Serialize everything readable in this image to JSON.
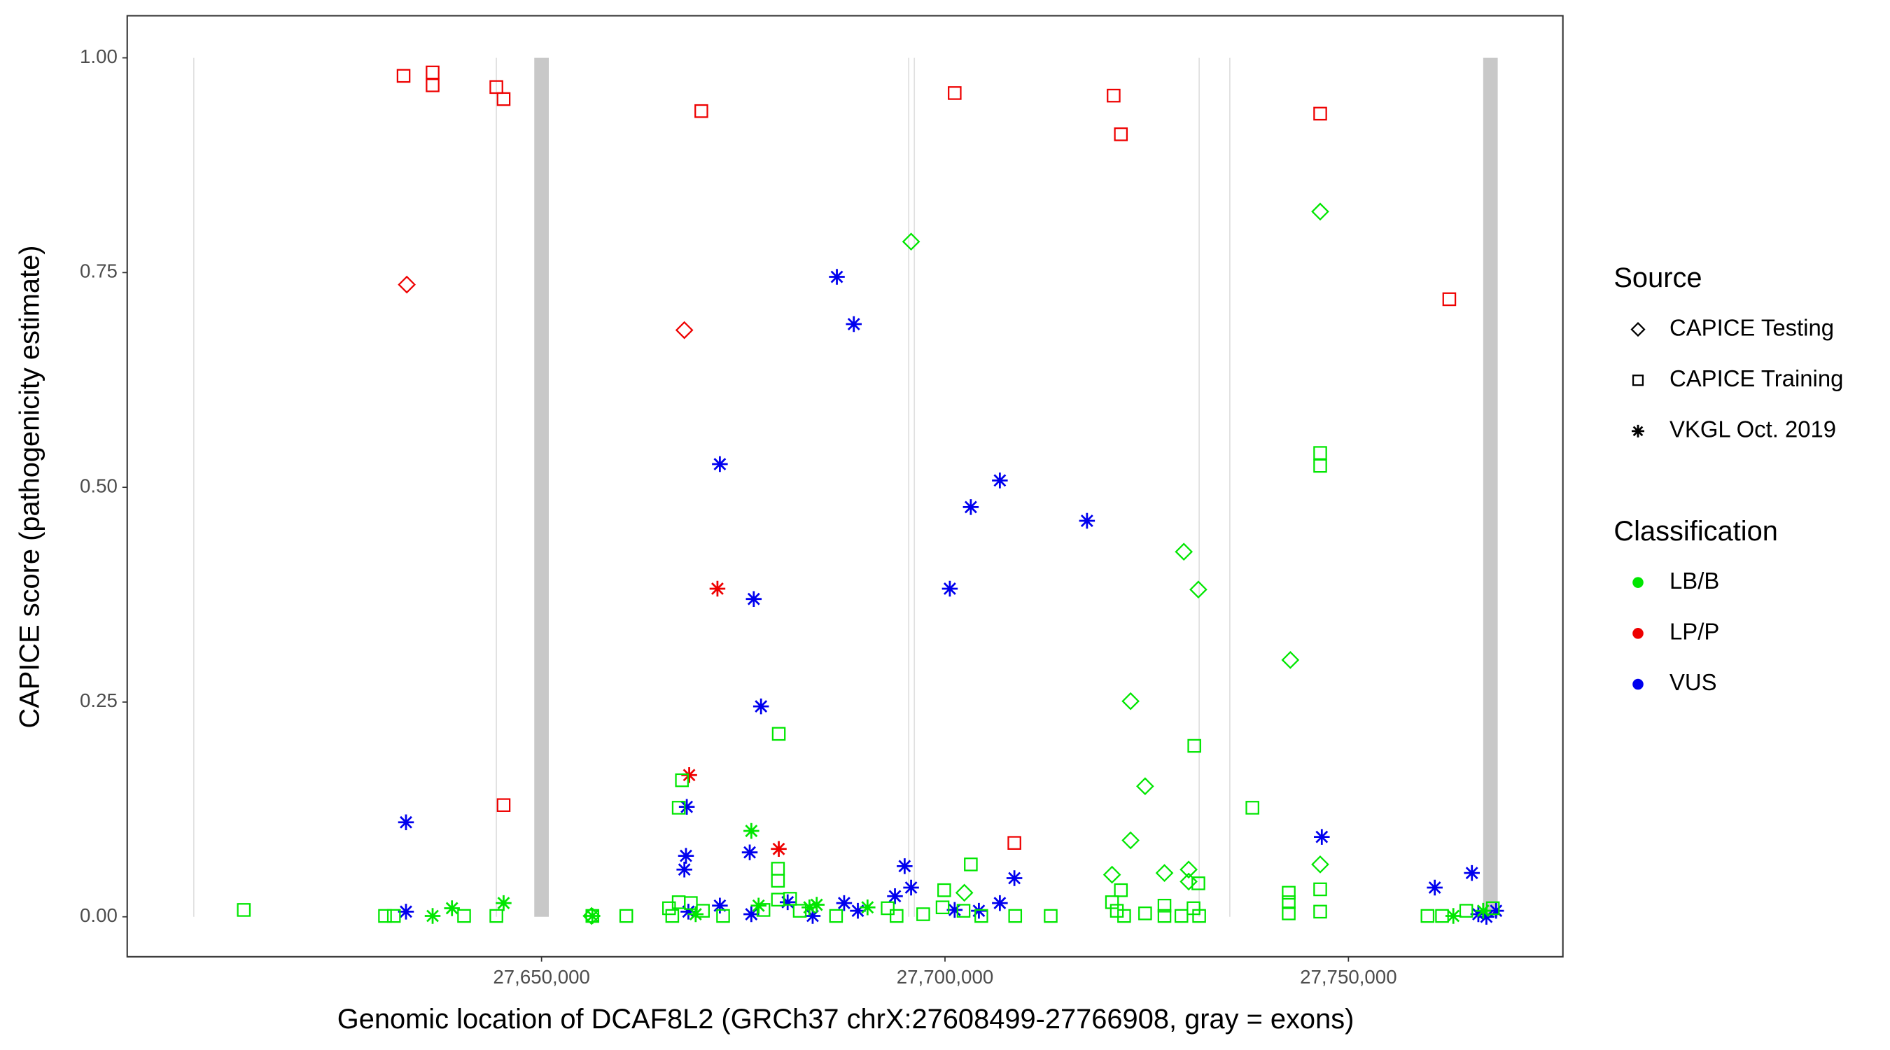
{
  "chart_data": {
    "type": "scatter",
    "xlabel": "Genomic location of DCAF8L2 (GRCh37 chrX:27608499-27766908, gray = exons)",
    "ylabel": "CAPICE score (pathogenicity estimate)",
    "xlim": [
      27598650,
      27776577
    ],
    "ylim": [
      -0.0465,
      1.049
    ],
    "xticks": [
      {
        "value": 27650000,
        "label": "27,650,000"
      },
      {
        "value": 27700000,
        "label": "27,700,000"
      },
      {
        "value": 27750000,
        "label": "27,750,000"
      }
    ],
    "yticks": [
      {
        "value": 0,
        "label": "0.00"
      },
      {
        "value": 0.25,
        "label": "0.25"
      },
      {
        "value": 0.5,
        "label": "0.50"
      },
      {
        "value": 0.75,
        "label": "0.75"
      },
      {
        "value": 1,
        "label": "1.00"
      }
    ],
    "grid": false,
    "exon_color": "#c8c8c8",
    "exons": [
      [
        27649100,
        27650900
      ],
      [
        27766700,
        27768500
      ]
    ],
    "reference_lines": [
      27606900,
      27644400,
      27695500,
      27696200,
      27731500,
      27735300
    ],
    "legends": [
      {
        "title": "Source",
        "entries": [
          {
            "label": "CAPICE Testing",
            "shape": "diamond"
          },
          {
            "label": "CAPICE Training",
            "shape": "square"
          },
          {
            "label": "VKGL Oct. 2019",
            "shape": "star"
          }
        ]
      },
      {
        "title": "Classification",
        "entries": [
          {
            "label": "LB/B",
            "color": "#00e600"
          },
          {
            "label": "LP/P",
            "color": "#ee0000"
          },
          {
            "label": "VUS",
            "color": "#0000ee"
          }
        ]
      }
    ],
    "series": [
      {
        "source": "CAPICE Training",
        "classification": "LP/P",
        "x": [
          27632900,
          27636500,
          27636500,
          27644400,
          27645300,
          27669800,
          27701200,
          27720900,
          27721800,
          27746500,
          27762500,
          27645300,
          27708600
        ],
        "y": [
          0.979,
          0.983,
          0.968,
          0.966,
          0.952,
          0.938,
          0.959,
          0.956,
          0.911,
          0.935,
          0.719,
          0.13,
          0.086
        ]
      },
      {
        "source": "CAPICE Testing",
        "classification": "LP/P",
        "x": [
          27633300,
          27667700
        ],
        "y": [
          0.736,
          0.683
        ]
      },
      {
        "source": "VKGL Oct. 2019",
        "classification": "LP/P",
        "x": [
          27671800,
          27668300,
          27679400
        ],
        "y": [
          0.382,
          0.165,
          0.079
        ]
      },
      {
        "source": "VKGL Oct. 2019",
        "classification": "VUS",
        "x": [
          27686600,
          27688700,
          27672100,
          27706800,
          27703200,
          27717600,
          27700600,
          27676300,
          27677200,
          27633200,
          27668000,
          27667900,
          27667700,
          27675800,
          27746700,
          27708600,
          27695000,
          27695800,
          27693800,
          27760700,
          27765300,
          27706800,
          27633200,
          27672100,
          27680500,
          27687500,
          27689200,
          27683600,
          27668200,
          27676000,
          27701200,
          27704200,
          27766100,
          27768300,
          27767100
        ],
        "y": [
          0.745,
          0.69,
          0.527,
          0.508,
          0.477,
          0.461,
          0.382,
          0.37,
          0.245,
          0.11,
          0.128,
          0.071,
          0.055,
          0.075,
          0.093,
          0.045,
          0.059,
          0.034,
          0.024,
          0.034,
          0.051,
          0.016,
          0.006,
          0.013,
          0.017,
          0.016,
          0.007,
          0.001,
          0.006,
          0.003,
          0.008,
          0.007,
          0.003,
          0.007,
          0
        ]
      },
      {
        "source": "CAPICE Testing",
        "classification": "LB/B",
        "x": [
          27695800,
          27746500,
          27729600,
          27731400,
          27742800,
          27723000,
          27724800,
          27723000,
          27720700,
          27727200,
          27730200,
          27746500,
          27730200,
          27702400,
          27656200
        ],
        "y": [
          0.786,
          0.821,
          0.425,
          0.381,
          0.299,
          0.251,
          0.152,
          0.089,
          0.049,
          0.051,
          0.055,
          0.061,
          0.041,
          0.028,
          0.001
        ]
      },
      {
        "source": "CAPICE Training",
        "classification": "LB/B",
        "x": [
          27613100,
          27746500,
          27746500,
          27679400,
          27730900,
          27667400,
          27667000,
          27738100,
          27679300,
          27679300,
          27703200,
          27742600,
          27742600,
          27746500,
          27746500,
          27721800,
          27731400,
          27699900,
          27742600,
          27630600,
          27631700,
          27640400,
          27644400,
          27656300,
          27660500,
          27665800,
          27667000,
          27668500,
          27666200,
          27670000,
          27672500,
          27677500,
          27679300,
          27680800,
          27682000,
          27686500,
          27692900,
          27694000,
          27697300,
          27699700,
          27702300,
          27704500,
          27708700,
          27713100,
          27720700,
          27721300,
          27722200,
          27724800,
          27727200,
          27727200,
          27729300,
          27730800,
          27731500,
          27759800,
          27761600,
          27764600,
          27767900
        ],
        "y": [
          0.008,
          0.54,
          0.525,
          0.213,
          0.199,
          0.159,
          0.127,
          0.127,
          0.056,
          0.042,
          0.061,
          0.028,
          0.017,
          0.032,
          0.006,
          0.031,
          0.039,
          0.031,
          0.004,
          0.001,
          0.001,
          0.001,
          0.001,
          0.001,
          0.001,
          0.01,
          0.017,
          0.016,
          0.001,
          0.007,
          0.001,
          0.008,
          0.02,
          0.021,
          0.007,
          0.001,
          0.01,
          0.001,
          0.003,
          0.011,
          0.007,
          0.001,
          0.001,
          0.001,
          0.017,
          0.007,
          0.001,
          0.004,
          0.013,
          0.001,
          0.001,
          0.01,
          0.001,
          0.001,
          0.001,
          0.007,
          0.01
        ]
      },
      {
        "source": "VKGL Oct. 2019",
        "classification": "LB/B",
        "x": [
          27676000,
          27645300,
          27638900,
          27636500,
          27656300,
          27676900,
          27683200,
          27684100,
          27690400,
          27669100,
          27766700,
          27763000
        ],
        "y": [
          0.1,
          0.016,
          0.01,
          0.001,
          0.001,
          0.013,
          0.011,
          0.014,
          0.011,
          0.003,
          0.007,
          0.001
        ]
      }
    ]
  }
}
